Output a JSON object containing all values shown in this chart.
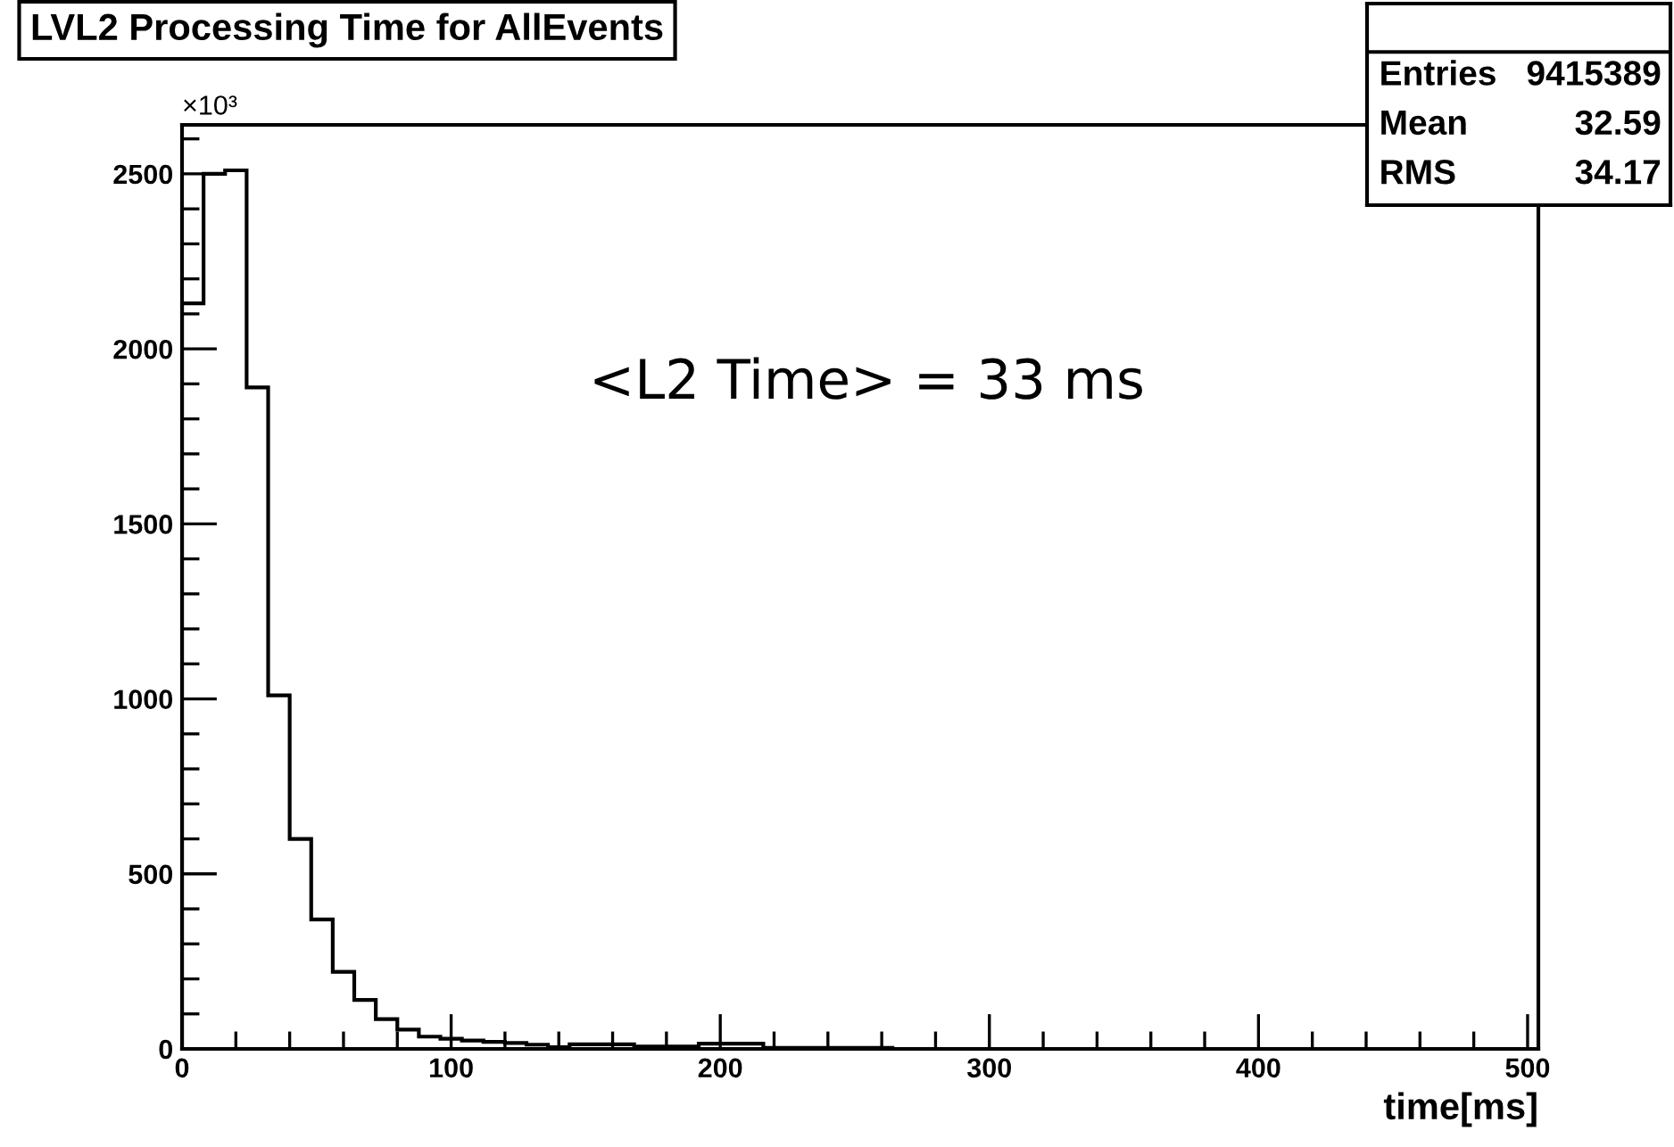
{
  "chart_data": {
    "type": "histogram",
    "title": "LVL2 Processing Time for AllEvents",
    "xlabel": "time[ms]",
    "bins": [
      0,
      8,
      16,
      24,
      32,
      40,
      48,
      56,
      64,
      72,
      80,
      88,
      96,
      104,
      112,
      120,
      128,
      136,
      144,
      152,
      160,
      168,
      176,
      184,
      192,
      200,
      208,
      216,
      224,
      232,
      240,
      248,
      256,
      264
    ],
    "values": [
      2130,
      2500,
      2510,
      1890,
      1010,
      600,
      370,
      220,
      140,
      85,
      55,
      35,
      29,
      24,
      20,
      17,
      12,
      5,
      13,
      13,
      13,
      7,
      7,
      7,
      15,
      15,
      15,
      3,
      3,
      3,
      3,
      3,
      3
    ],
    "color": "#000000",
    "xlim": [
      0,
      504
    ],
    "ylim": [
      0,
      2640
    ],
    "xticks": [
      0,
      {
        "value": 20,
        "label": null
      },
      {
        "value": 40,
        "label": null
      },
      {
        "value": 60,
        "label": null
      },
      {
        "value": 80,
        "label": null
      },
      100,
      {
        "value": 120,
        "label": null
      },
      {
        "value": 140,
        "label": null
      },
      {
        "value": 160,
        "label": null
      },
      {
        "value": 180,
        "label": null
      },
      200,
      {
        "value": 220,
        "label": null
      },
      {
        "value": 240,
        "label": null
      },
      {
        "value": 260,
        "label": null
      },
      {
        "value": 280,
        "label": null
      },
      300,
      {
        "value": 320,
        "label": null
      },
      {
        "value": 340,
        "label": null
      },
      {
        "value": 360,
        "label": null
      },
      {
        "value": 380,
        "label": null
      },
      400,
      {
        "value": 420,
        "label": null
      },
      {
        "value": 440,
        "label": null
      },
      {
        "value": 460,
        "label": null
      },
      {
        "value": 480,
        "label": null
      },
      500
    ],
    "yticks": [
      0,
      {
        "value": 100,
        "label": null
      },
      {
        "value": 200,
        "label": null
      },
      {
        "value": 300,
        "label": null
      },
      {
        "value": 400,
        "label": null
      },
      500,
      {
        "value": 600,
        "label": null
      },
      {
        "value": 700,
        "label": null
      },
      {
        "value": 800,
        "label": null
      },
      {
        "value": 900,
        "label": null
      },
      1000,
      {
        "value": 1100,
        "label": null
      },
      {
        "value": 1200,
        "label": null
      },
      {
        "value": 1300,
        "label": null
      },
      {
        "value": 1400,
        "label": null
      },
      1500,
      {
        "value": 1600,
        "label": null
      },
      {
        "value": 1700,
        "label": null
      },
      {
        "value": 1800,
        "label": null
      },
      {
        "value": 1900,
        "label": null
      },
      2000,
      {
        "value": 2100,
        "label": null
      },
      {
        "value": 2200,
        "label": null
      },
      {
        "value": 2300,
        "label": null
      },
      {
        "value": 2400,
        "label": null
      },
      2500,
      {
        "value": 2600,
        "label": null
      }
    ],
    "annotations": [
      "×10³",
      "<L2 Time> = 33 ms",
      "Entries",
      "9415389",
      "Mean",
      "32.59",
      "RMS",
      "34.17"
    ]
  }
}
